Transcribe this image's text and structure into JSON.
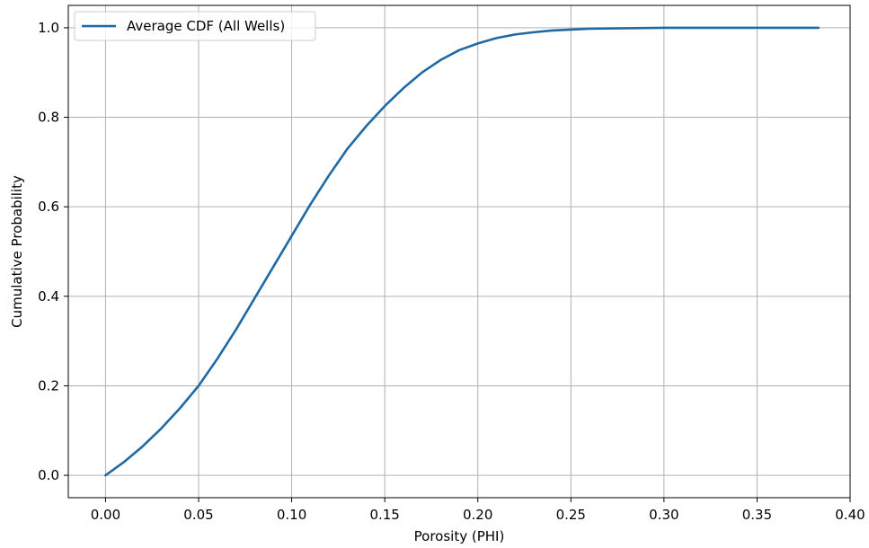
{
  "chart_data": {
    "type": "line",
    "title": "",
    "xlabel": "Porosity (PHI)",
    "ylabel": "Cumulative Probability",
    "xlim": [
      -0.02,
      0.4
    ],
    "ylim": [
      -0.05,
      1.05
    ],
    "xticks": [
      0.0,
      0.05,
      0.1,
      0.15,
      0.2,
      0.25,
      0.3,
      0.35,
      0.4
    ],
    "xtick_labels": [
      "0.00",
      "0.05",
      "0.10",
      "0.15",
      "0.20",
      "0.25",
      "0.30",
      "0.35",
      "0.40"
    ],
    "yticks": [
      0.0,
      0.2,
      0.4,
      0.6,
      0.8,
      1.0
    ],
    "ytick_labels": [
      "0.0",
      "0.2",
      "0.4",
      "0.6",
      "0.8",
      "1.0"
    ],
    "grid": true,
    "legend_position": "top-left",
    "series": [
      {
        "name": "Average CDF (All Wells)",
        "color": "#1f6aa5",
        "x": [
          0.0,
          0.01,
          0.02,
          0.03,
          0.04,
          0.05,
          0.06,
          0.07,
          0.08,
          0.09,
          0.1,
          0.11,
          0.12,
          0.13,
          0.14,
          0.15,
          0.16,
          0.17,
          0.18,
          0.19,
          0.2,
          0.21,
          0.22,
          0.23,
          0.24,
          0.25,
          0.26,
          0.28,
          0.3,
          0.32,
          0.34,
          0.36,
          0.383
        ],
        "y": [
          0.0,
          0.03,
          0.065,
          0.105,
          0.15,
          0.2,
          0.26,
          0.325,
          0.395,
          0.465,
          0.535,
          0.605,
          0.67,
          0.73,
          0.78,
          0.825,
          0.865,
          0.9,
          0.928,
          0.95,
          0.965,
          0.977,
          0.985,
          0.99,
          0.994,
          0.996,
          0.998,
          0.999,
          1.0,
          1.0,
          1.0,
          1.0,
          1.0
        ]
      }
    ]
  }
}
